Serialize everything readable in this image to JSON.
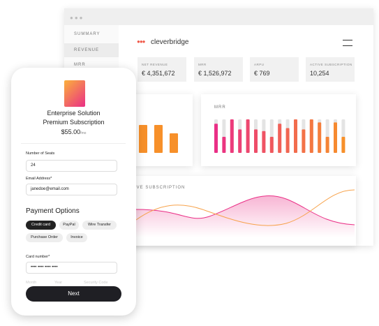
{
  "dashboard": {
    "sidebar": [
      "SUMMARY",
      "REVENUE",
      "MRR"
    ],
    "logo": "cleverbridge",
    "kpis": [
      {
        "label": "NET REVENUE",
        "value": "€ 4,351,672"
      },
      {
        "label": "MRR",
        "value": "€ 1,526,972"
      },
      {
        "label": "ARPU",
        "value": "€ 769"
      },
      {
        "label": "ACTIVE SUBSCRIPTION",
        "value": "10,254"
      }
    ],
    "revenue_chart": {
      "type": "bar",
      "values": [
        40,
        40,
        28
      ],
      "ylim": [
        0,
        50
      ],
      "color": "#f7902a"
    },
    "mrr_chart": {
      "type": "bar",
      "title": "MRR",
      "values": [
        87,
        48,
        100,
        70,
        100,
        70,
        65,
        48,
        87,
        74,
        100,
        70,
        100,
        91,
        48,
        91,
        48
      ],
      "ylim": [
        0,
        100
      ],
      "color_start": "#ea2f86",
      "color_end": "#f7902a",
      "track_color": "#e4e4e4"
    },
    "subscription_chart": {
      "title": "ACTIVE SUBSCRIPTION"
    }
  },
  "checkout": {
    "product": [
      "Enterprise Solution",
      "Premium Subscription"
    ],
    "price": "$55.00",
    "period": "/mo",
    "fields": [
      {
        "label": "Number of Seats",
        "value": "24"
      },
      {
        "label": "Email Address*",
        "value": "janedoe@email.com"
      }
    ],
    "payment_title": "Payment Options",
    "payment_options": [
      "Credit card",
      "PayPal",
      "Wire Transfer",
      "Purchase Order",
      "Invoice"
    ],
    "card_label": "Card number*",
    "card_value": "•••• •••• •••• ••••",
    "sub_labels": [
      "Month",
      "Year",
      "Security Code"
    ],
    "button": "Next"
  }
}
